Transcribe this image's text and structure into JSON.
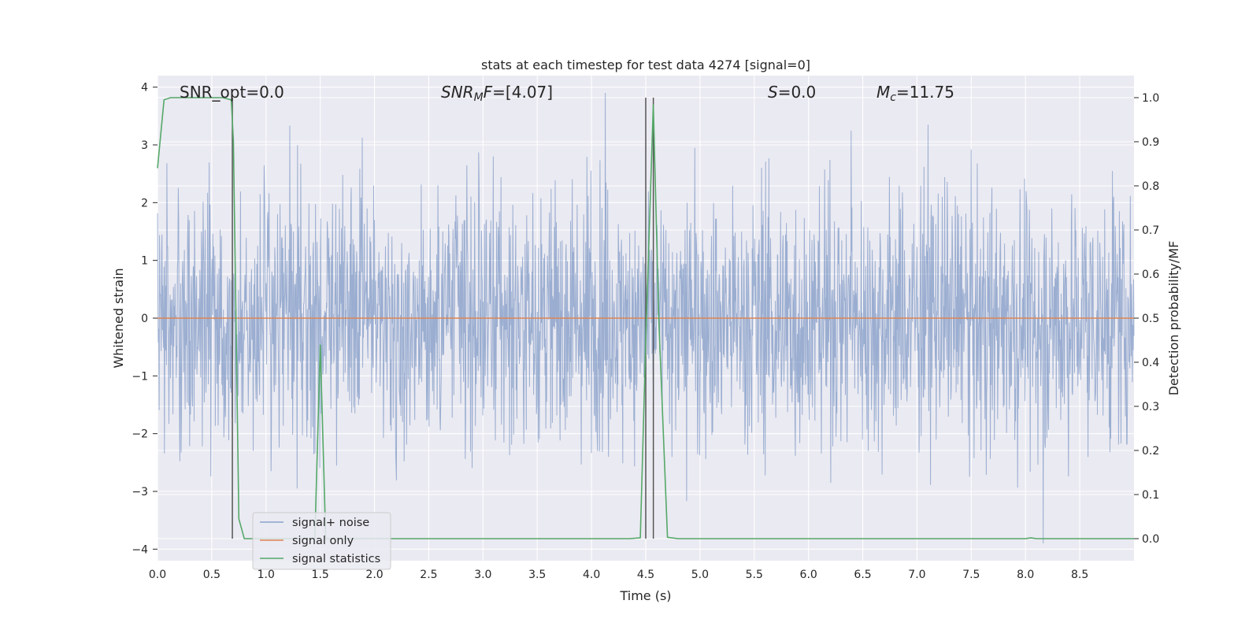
{
  "colors": {
    "plot_bg": "#eaeaf2",
    "grid": "#ffffff",
    "noise": "#4c72b0",
    "signal": "#dd8452",
    "stats": "#55a868",
    "vline": "#555555"
  },
  "chart_data": {
    "type": "line",
    "title": "stats at each timestep for test data 4274 [signal=0]",
    "xlabel": "Time (s)",
    "ylabel": "Whitened strain",
    "y2label": "Detection probability/MF",
    "xlim": [
      0.0,
      9.0
    ],
    "ylim": [
      -4.2,
      4.2
    ],
    "y2lim": [
      -0.05,
      1.05
    ],
    "xticks": [
      "0.0",
      "0.5",
      "1.0",
      "1.5",
      "2.0",
      "2.5",
      "3.0",
      "3.5",
      "4.0",
      "4.5",
      "5.0",
      "5.5",
      "6.0",
      "6.5",
      "7.0",
      "7.5",
      "8.0",
      "8.5"
    ],
    "yticks": [
      "−4",
      "−3",
      "−2",
      "−1",
      "0",
      "1",
      "2",
      "3",
      "4"
    ],
    "y2ticks": [
      "0.0",
      "0.1",
      "0.2",
      "0.3",
      "0.4",
      "0.5",
      "0.6",
      "0.7",
      "0.8",
      "0.9",
      "1.0"
    ],
    "grid": true,
    "legend_position": "lower-left",
    "annotations": {
      "snr_opt": "SNR_opt=0.0",
      "snr_mf_name": "SNR",
      "snr_mf_sub": "M",
      "snr_mf_tail": "F",
      "snr_mf_value": "=[4.07]",
      "s_name": "S",
      "s_value": "=0.0",
      "mc_name": "M",
      "mc_sub": "c",
      "mc_value": "=11.75"
    },
    "vertical_lines_x": [
      0.69,
      4.5,
      4.57
    ],
    "series": [
      {
        "name": "signal+ noise",
        "kind": "noise-strain",
        "abs_envelope_typical": 1.2,
        "abs_peak_max": 3.9
      },
      {
        "name": "signal only",
        "kind": "flat",
        "x": [
          0.0,
          9.0
        ],
        "y": [
          0.0,
          0.0
        ]
      },
      {
        "name": "signal statistics",
        "axis": "right",
        "x": [
          0.0,
          0.06,
          0.12,
          0.2,
          0.3,
          0.4,
          0.5,
          0.6,
          0.68,
          0.7,
          0.75,
          0.8,
          0.9,
          1.0,
          1.2,
          1.4,
          1.45,
          1.5,
          1.55,
          1.6,
          1.7,
          2.0,
          3.0,
          4.0,
          4.35,
          4.45,
          4.5,
          4.57,
          4.62,
          4.7,
          4.8,
          5.0,
          6.0,
          7.0,
          8.0,
          8.05,
          8.1,
          8.5,
          9.0
        ],
        "y": [
          0.84,
          0.995,
          1.0,
          1.0,
          1.0,
          1.0,
          1.0,
          1.0,
          0.995,
          0.9,
          0.045,
          0.0,
          0.0,
          0.0,
          0.0,
          0.0,
          0.0,
          0.44,
          0.0,
          0.0,
          0.0,
          0.0,
          0.0,
          0.0,
          0.0,
          0.002,
          0.45,
          0.985,
          0.5,
          0.003,
          0.0,
          0.0,
          0.0,
          0.0,
          0.0,
          0.002,
          0.0,
          0.0,
          0.0
        ]
      }
    ]
  }
}
